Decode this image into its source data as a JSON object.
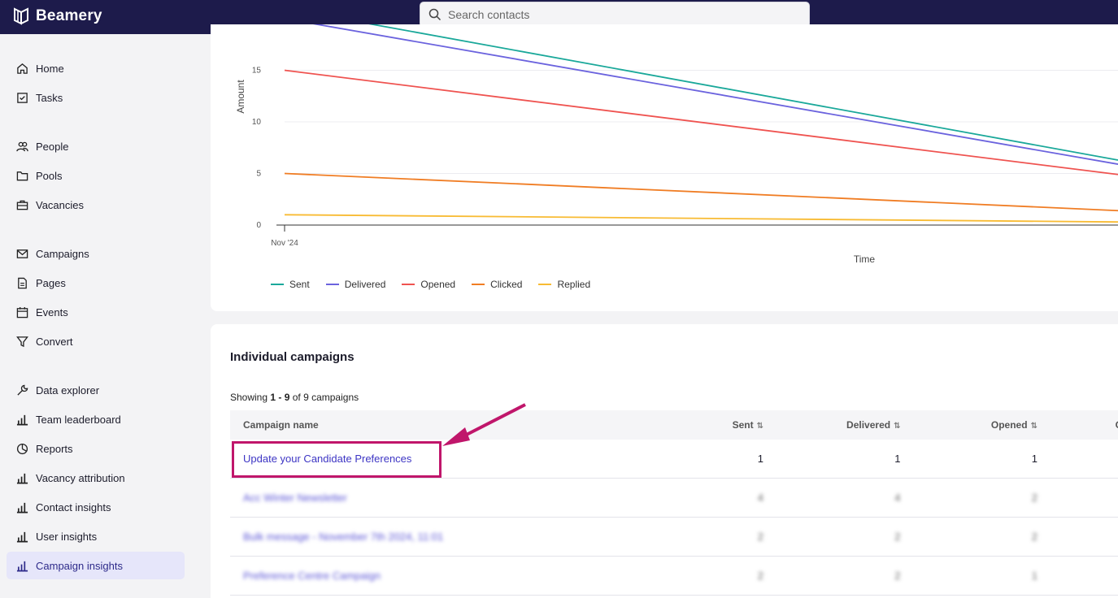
{
  "app": {
    "brand": "Beamery"
  },
  "search": {
    "placeholder": "Search contacts"
  },
  "sidebar": {
    "items": [
      {
        "label": "Home",
        "icon": "home-icon"
      },
      {
        "label": "Tasks",
        "icon": "tasks-icon"
      },
      {
        "label": "People",
        "icon": "people-icon"
      },
      {
        "label": "Pools",
        "icon": "folder-icon"
      },
      {
        "label": "Vacancies",
        "icon": "briefcase-icon"
      },
      {
        "label": "Campaigns",
        "icon": "mail-icon"
      },
      {
        "label": "Pages",
        "icon": "page-icon"
      },
      {
        "label": "Events",
        "icon": "calendar-icon"
      },
      {
        "label": "Convert",
        "icon": "filter-icon"
      },
      {
        "label": "Data explorer",
        "icon": "wrench-icon"
      },
      {
        "label": "Team leaderboard",
        "icon": "bar-chart-icon"
      },
      {
        "label": "Reports",
        "icon": "pie-chart-icon"
      },
      {
        "label": "Vacancy attribution",
        "icon": "bar-chart-icon"
      },
      {
        "label": "Contact insights",
        "icon": "bar-chart-icon"
      },
      {
        "label": "User insights",
        "icon": "bar-chart-icon"
      },
      {
        "label": "Campaign insights",
        "icon": "bar-chart-icon",
        "active": true
      }
    ]
  },
  "chart_data": {
    "type": "line",
    "xlabel": "Time",
    "ylabel": "Amount",
    "x_ticks": [
      "Nov '24"
    ],
    "y_ticks": [
      0,
      5,
      10,
      15
    ],
    "grid": true,
    "legend_position": "bottom-left",
    "series": [
      {
        "name": "Sent",
        "color": "#1aa89a",
        "start": 21,
        "end": 6.3
      },
      {
        "name": "Delivered",
        "color": "#6b63de",
        "start": 20,
        "end": 5.9
      },
      {
        "name": "Opened",
        "color": "#ef5350",
        "start": 15,
        "end": 4.9
      },
      {
        "name": "Clicked",
        "color": "#f07d24",
        "start": 5,
        "end": 1.4
      },
      {
        "name": "Replied",
        "color": "#f8bb33",
        "start": 1,
        "end": 0.3
      }
    ]
  },
  "campaigns": {
    "title": "Individual campaigns",
    "showing_prefix": "Showing",
    "showing_range": "1 - 9",
    "showing_suffix": "of 9 campaigns",
    "columns": {
      "name": "Campaign name",
      "sent": "Sent",
      "delivered": "Delivered",
      "opened": "Opened",
      "clicked": "Cli"
    },
    "rows": [
      {
        "name": "Update your Candidate Preferences",
        "sent": "1",
        "delivered": "1",
        "opened": "1"
      },
      {
        "name": "Acc Winter Newsletter",
        "sent": "4",
        "delivered": "4",
        "opened": "2"
      },
      {
        "name": "Bulk message - November 7th 2024, 11:01",
        "sent": "2",
        "delivered": "2",
        "opened": "2"
      },
      {
        "name": "Preference Centre Campaign",
        "sent": "2",
        "delivered": "2",
        "opened": "1"
      }
    ]
  },
  "annotation": {
    "color": "#c0166b"
  }
}
